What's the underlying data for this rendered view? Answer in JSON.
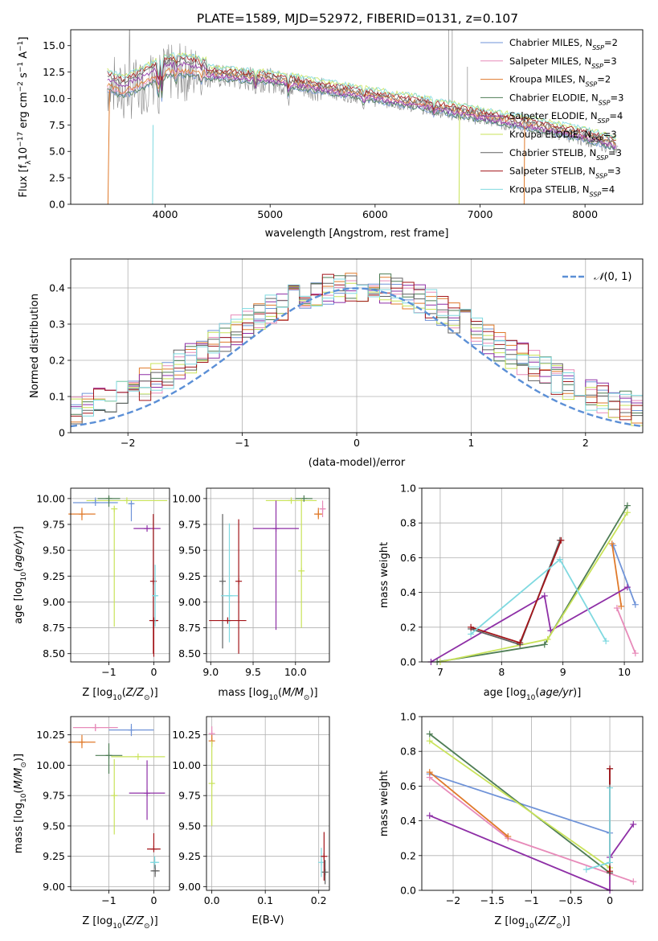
{
  "figure_title": "PLATE=1589, MJD=52972, FIBERID=0131, z=0.107",
  "palette": {
    "cm": "#6f93d8",
    "sm": "#e78ab9",
    "km": "#e07a2b",
    "ce": "#4e7d55",
    "se": "#8e2fa6",
    "ke": "#c9e35a",
    "cs": "#606060",
    "ss": "#a3151a",
    "ks": "#7fd9e0",
    "gauss": "#5b8fd6",
    "obs": "#888888"
  },
  "chart_data": [
    {
      "id": "spectrum",
      "type": "line",
      "title": "PLATE=1589, MJD=52972, FIBERID=0131, z=0.107",
      "xlabel": "wavelength [Angstrom, rest frame]",
      "ylabel": "Flux [f_λ 10^-17 erg cm^-2 s^-1 A^-1]",
      "xlim": [
        3100,
        8550
      ],
      "ylim": [
        0,
        16.5
      ],
      "xticks": [
        4000,
        5000,
        6000,
        7000,
        8000
      ],
      "yticks": [
        0.0,
        2.5,
        5.0,
        7.5,
        10.0,
        12.5,
        15.0
      ],
      "grid": false,
      "legend_position": "top-right",
      "series": [
        {
          "name": "Chabrier MILES",
          "sub": "SSP",
          "n": "2",
          "color_key": "cm"
        },
        {
          "name": "Salpeter MILES",
          "sub": "SSP",
          "n": "3",
          "color_key": "sm"
        },
        {
          "name": "Kroupa MILES",
          "sub": "SSP",
          "n": "2",
          "color_key": "km"
        },
        {
          "name": "Chabrier ELODIE",
          "sub": "SSP",
          "n": "3",
          "color_key": "ce"
        },
        {
          "name": "Salpeter ELODIE",
          "sub": "SSP",
          "n": "4",
          "color_key": "se"
        },
        {
          "name": "Kroupa ELODIE",
          "sub": "SSP",
          "n": "3",
          "color_key": "ke"
        },
        {
          "name": "Chabrier STELIB",
          "sub": "SSP",
          "n": "3",
          "color_key": "cs"
        },
        {
          "name": "Salpeter STELIB",
          "sub": "SSP",
          "n": "3",
          "color_key": "ss"
        },
        {
          "name": "Kroupa STELIB",
          "sub": "SSP",
          "n": "4",
          "color_key": "ks"
        }
      ],
      "continuum": [
        [
          3450,
          11.0
        ],
        [
          3600,
          10.4
        ],
        [
          3800,
          11.3
        ],
        [
          3950,
          12.2
        ],
        [
          4100,
          12.5
        ],
        [
          4300,
          12.3
        ],
        [
          4600,
          12.0
        ],
        [
          5000,
          11.7
        ],
        [
          5400,
          11.0
        ],
        [
          6000,
          10.0
        ],
        [
          6500,
          9.2
        ],
        [
          7000,
          8.2
        ],
        [
          7500,
          7.3
        ],
        [
          8000,
          6.3
        ],
        [
          8300,
          5.4
        ]
      ]
    },
    {
      "id": "residuals",
      "type": "line",
      "xlabel": "(data-model)/error",
      "ylabel": "Normed distribution",
      "xlim": [
        -2.5,
        2.5
      ],
      "ylim": [
        0,
        0.48
      ],
      "xticks": [
        -2,
        -1,
        0,
        1,
        2
      ],
      "yticks": [
        0.0,
        0.1,
        0.2,
        0.3,
        0.4
      ],
      "grid": true,
      "legend_position": "top-right",
      "legend_label": "N(0, 1)",
      "gauss_sigma": 1.0
    },
    {
      "id": "age_vs_Z",
      "type": "scatter",
      "xlabel": "Z [log10(Z/Z⊙)]",
      "ylabel": "age [log10(age/yr)]",
      "xlim": [
        -1.85,
        0.35
      ],
      "ylim": [
        8.42,
        10.1
      ],
      "xticks": [
        -1,
        0
      ],
      "yticks": [
        8.5,
        8.75,
        9.0,
        9.25,
        9.5,
        9.75,
        10.0
      ],
      "grid": true,
      "points": [
        {
          "k": "ke",
          "x": -0.6,
          "y": 9.98,
          "xerr": 0.9,
          "yerr_lo": 0.0,
          "yerr_hi": 0.0
        },
        {
          "k": "cm",
          "x": -1.3,
          "y": 9.96,
          "xerr": 0.5,
          "yerr_lo": 0.0,
          "yerr_hi": 0.05
        },
        {
          "k": "ce",
          "x": -1.0,
          "y": 10.0,
          "xerr": 0.25,
          "yerr_lo": 0.08,
          "yerr_hi": 0.02
        },
        {
          "k": "km",
          "x": -1.6,
          "y": 9.85,
          "xerr": 0.3,
          "yerr_lo": 0.06,
          "yerr_hi": 0.06
        },
        {
          "k": "cm",
          "x": -0.5,
          "y": 9.95,
          "xerr": 0.05,
          "yerr_lo": 0.17,
          "yerr_hi": 0.0
        },
        {
          "k": "ke",
          "x": -0.88,
          "y": 9.9,
          "xerr": 0.0,
          "yerr_lo": 1.14,
          "yerr_hi": 0.0
        },
        {
          "k": "se",
          "x": -0.15,
          "y": 9.71,
          "xerr": 0.3,
          "yerr_lo": 0.0,
          "yerr_hi": 0.0
        },
        {
          "k": "ss",
          "x": -0.01,
          "y": 9.2,
          "xerr": 0.0,
          "yerr_lo": 0.7,
          "yerr_hi": 0.65
        },
        {
          "k": "ss",
          "x": 0.0,
          "y": 8.82,
          "xerr": 0.1,
          "yerr_lo": 0.35,
          "yerr_hi": 0.0
        },
        {
          "k": "ks",
          "x": 0.03,
          "y": 9.06,
          "xerr": 0.05,
          "yerr_lo": 0.3,
          "yerr_hi": 0.3
        }
      ]
    },
    {
      "id": "age_vs_mass",
      "type": "scatter",
      "xlabel": "mass [log10(M/M⊙)]",
      "ylabel": "",
      "xlim": [
        8.95,
        10.4
      ],
      "ylim": [
        8.42,
        10.1
      ],
      "xticks": [
        9.0,
        9.5,
        10.0
      ],
      "yticks": [
        8.5,
        8.75,
        9.0,
        9.25,
        9.5,
        9.75,
        10.0
      ],
      "grid": true,
      "points": [
        {
          "k": "ke",
          "x": 9.95,
          "y": 9.98,
          "xerr": 0.3,
          "yerr_lo": 0.0,
          "yerr_hi": 0.0
        },
        {
          "k": "ce",
          "x": 10.1,
          "y": 10.0,
          "xerr": 0.1,
          "yerr_lo": 0.0,
          "yerr_hi": 0.0
        },
        {
          "k": "km",
          "x": 10.27,
          "y": 9.85,
          "xerr": 0.05,
          "yerr_lo": 0.05,
          "yerr_hi": 0.06
        },
        {
          "k": "sm",
          "x": 10.32,
          "y": 9.9,
          "xerr": 0.03,
          "yerr_lo": 0.08,
          "yerr_hi": 0.08
        },
        {
          "k": "se",
          "x": 9.77,
          "y": 9.71,
          "xerr": 0.27,
          "yerr_lo": 0.98,
          "yerr_hi": 0.27
        },
        {
          "k": "ke",
          "x": 10.07,
          "y": 9.3,
          "xerr": 0.0,
          "yerr_lo": 0.55,
          "yerr_hi": 0.7
        },
        {
          "k": "cs",
          "x": 9.14,
          "y": 9.2,
          "xerr": 0.0,
          "yerr_lo": 0.65,
          "yerr_hi": 0.65
        },
        {
          "k": "ks",
          "x": 9.22,
          "y": 9.06,
          "xerr": 0.1,
          "yerr_lo": 0.45,
          "yerr_hi": 0.7
        },
        {
          "k": "ss",
          "x": 9.33,
          "y": 9.2,
          "xerr": 0.0,
          "yerr_lo": 0.7,
          "yerr_hi": 0.6
        },
        {
          "k": "ss",
          "x": 9.2,
          "y": 8.82,
          "xerr": 0.22,
          "yerr_lo": 0.0,
          "yerr_hi": 0.0
        }
      ]
    },
    {
      "id": "weight_vs_age",
      "type": "line",
      "xlabel": "age [log10(age/yr)]",
      "ylabel": "mass weight",
      "xlim": [
        6.7,
        10.3
      ],
      "ylim": [
        0,
        1.0
      ],
      "xticks": [
        7,
        8,
        9,
        10
      ],
      "yticks": [
        0.0,
        0.2,
        0.4,
        0.6,
        0.8,
        1.0
      ],
      "grid": true,
      "series": [
        {
          "k": "cm",
          "pts": [
            [
              9.82,
              0.67
            ],
            [
              10.18,
              0.33
            ]
          ]
        },
        {
          "k": "sm",
          "pts": [
            [
              9.88,
              0.31
            ],
            [
              10.18,
              0.05
            ]
          ]
        },
        {
          "k": "km",
          "pts": [
            [
              9.8,
              0.68
            ],
            [
              9.95,
              0.32
            ]
          ]
        },
        {
          "k": "ce",
          "pts": [
            [
              6.95,
              0.0
            ],
            [
              8.7,
              0.1
            ],
            [
              10.05,
              0.9
            ]
          ]
        },
        {
          "k": "se",
          "pts": [
            [
              6.85,
              0.0
            ],
            [
              8.7,
              0.38
            ],
            [
              8.8,
              0.18
            ],
            [
              10.05,
              0.43
            ]
          ]
        },
        {
          "k": "ke",
          "pts": [
            [
              7.0,
              0.0
            ],
            [
              8.75,
              0.13
            ],
            [
              10.05,
              0.86
            ]
          ]
        },
        {
          "k": "cs",
          "pts": [
            [
              7.5,
              0.19
            ],
            [
              8.3,
              0.1
            ],
            [
              8.95,
              0.7
            ]
          ]
        },
        {
          "k": "ss",
          "pts": [
            [
              7.5,
              0.2
            ],
            [
              8.3,
              0.11
            ],
            [
              8.97,
              0.7
            ]
          ]
        },
        {
          "k": "ks",
          "pts": [
            [
              7.5,
              0.16
            ],
            [
              8.95,
              0.59
            ],
            [
              9.7,
              0.12
            ]
          ]
        }
      ]
    },
    {
      "id": "mass_vs_Z",
      "type": "scatter",
      "xlabel": "Z [log10(Z/Z⊙)]",
      "ylabel": "mass [log10(M/M⊙)]",
      "xlim": [
        -1.85,
        0.35
      ],
      "ylim": [
        8.97,
        10.4
      ],
      "xticks": [
        -1,
        0
      ],
      "yticks": [
        9.0,
        9.25,
        9.5,
        9.75,
        10.0,
        10.25
      ],
      "grid": true,
      "points": [
        {
          "k": "sm",
          "x": -1.3,
          "y": 10.31,
          "xerr": 0.5,
          "yerr_lo": 0.03,
          "yerr_hi": 0.03
        },
        {
          "k": "cm",
          "x": -0.5,
          "y": 10.29,
          "xerr": 0.5,
          "yerr_lo": 0.05,
          "yerr_hi": 0.05
        },
        {
          "k": "km",
          "x": -1.6,
          "y": 10.19,
          "xerr": 0.3,
          "yerr_lo": 0.05,
          "yerr_hi": 0.06
        },
        {
          "k": "ce",
          "x": -1.0,
          "y": 10.08,
          "xerr": 0.3,
          "yerr_lo": 0.15,
          "yerr_hi": 0.1
        },
        {
          "k": "ke",
          "x": -0.35,
          "y": 10.07,
          "xerr": 0.6,
          "yerr_lo": 0.0,
          "yerr_hi": 0.0
        },
        {
          "k": "ke",
          "x": -0.88,
          "y": 9.75,
          "xerr": 0.0,
          "yerr_lo": 0.32,
          "yerr_hi": 0.3
        },
        {
          "k": "se",
          "x": -0.15,
          "y": 9.77,
          "xerr": 0.4,
          "yerr_lo": 0.22,
          "yerr_hi": 0.27
        },
        {
          "k": "ss",
          "x": 0.0,
          "y": 9.31,
          "xerr": 0.15,
          "yerr_lo": 0.0,
          "yerr_hi": 0.13
        },
        {
          "k": "ks",
          "x": 0.02,
          "y": 9.2,
          "xerr": 0.1,
          "yerr_lo": 0.05,
          "yerr_hi": 0.05
        },
        {
          "k": "cs",
          "x": 0.03,
          "y": 9.13,
          "xerr": 0.1,
          "yerr_lo": 0.05,
          "yerr_hi": 0.05
        }
      ]
    },
    {
      "id": "mass_vs_ebv",
      "type": "scatter",
      "xlabel": "E(B-V)",
      "ylabel": "",
      "xlim": [
        -0.01,
        0.22
      ],
      "ylim": [
        8.97,
        10.4
      ],
      "xticks": [
        0.0,
        0.1,
        0.2
      ],
      "yticks": [
        9.0,
        9.25,
        9.5,
        9.75,
        10.0,
        10.25
      ],
      "grid": true,
      "points": [
        {
          "k": "sm",
          "x": 0.0,
          "y": 10.26,
          "xerr": 0.0,
          "yerr_lo": 0.06,
          "yerr_hi": 0.06
        },
        {
          "k": "km",
          "x": 0.0,
          "y": 10.2,
          "xerr": 0.0,
          "yerr_lo": 0.05,
          "yerr_hi": 0.05
        },
        {
          "k": "ke",
          "x": 0.0,
          "y": 9.85,
          "xerr": 0.0,
          "yerr_lo": 0.35,
          "yerr_hi": 0.35
        },
        {
          "k": "ks",
          "x": 0.205,
          "y": 9.2,
          "xerr": 0.0,
          "yerr_lo": 0.12,
          "yerr_hi": 0.12
        },
        {
          "k": "ss",
          "x": 0.21,
          "y": 9.25,
          "xerr": 0.0,
          "yerr_lo": 0.2,
          "yerr_hi": 0.2
        },
        {
          "k": "cs",
          "x": 0.212,
          "y": 9.12,
          "xerr": 0.0,
          "yerr_lo": 0.1,
          "yerr_hi": 0.1
        }
      ]
    },
    {
      "id": "weight_vs_Z",
      "type": "line",
      "xlabel": "Z [log10(Z/Z⊙)]",
      "ylabel": "mass weight",
      "xlim": [
        -2.4,
        0.42
      ],
      "ylim": [
        0,
        1.0
      ],
      "xticks": [
        -2.0,
        -1.5,
        -1.0,
        -0.5,
        0.0
      ],
      "yticks": [
        0.0,
        0.2,
        0.4,
        0.6,
        0.8,
        1.0
      ],
      "grid": true,
      "series": [
        {
          "k": "cm",
          "pts": [
            [
              -2.3,
              0.67
            ],
            [
              0.0,
              0.33
            ]
          ]
        },
        {
          "k": "sm",
          "pts": [
            [
              -2.3,
              0.65
            ],
            [
              -1.3,
              0.3
            ],
            [
              0.3,
              0.05
            ]
          ]
        },
        {
          "k": "km",
          "pts": [
            [
              -2.3,
              0.68
            ],
            [
              -1.3,
              0.31
            ]
          ]
        },
        {
          "k": "ce",
          "pts": [
            [
              -2.3,
              0.9
            ],
            [
              0.0,
              0.1
            ]
          ]
        },
        {
          "k": "se",
          "pts": [
            [
              -2.3,
              0.43
            ],
            [
              0.0,
              0.0
            ],
            [
              0.0,
              0.19
            ],
            [
              0.3,
              0.38
            ]
          ]
        },
        {
          "k": "ke",
          "pts": [
            [
              -2.3,
              0.86
            ],
            [
              0.0,
              0.13
            ]
          ]
        },
        {
          "k": "cs",
          "pts": [
            [
              0.0,
              0.1
            ],
            [
              0.0,
              0.7
            ]
          ]
        },
        {
          "k": "ss",
          "pts": [
            [
              0.0,
              0.11
            ],
            [
              0.0,
              0.7
            ]
          ]
        },
        {
          "k": "ks",
          "pts": [
            [
              -0.3,
              0.12
            ],
            [
              0.0,
              0.16
            ],
            [
              0.0,
              0.59
            ]
          ]
        }
      ]
    }
  ]
}
